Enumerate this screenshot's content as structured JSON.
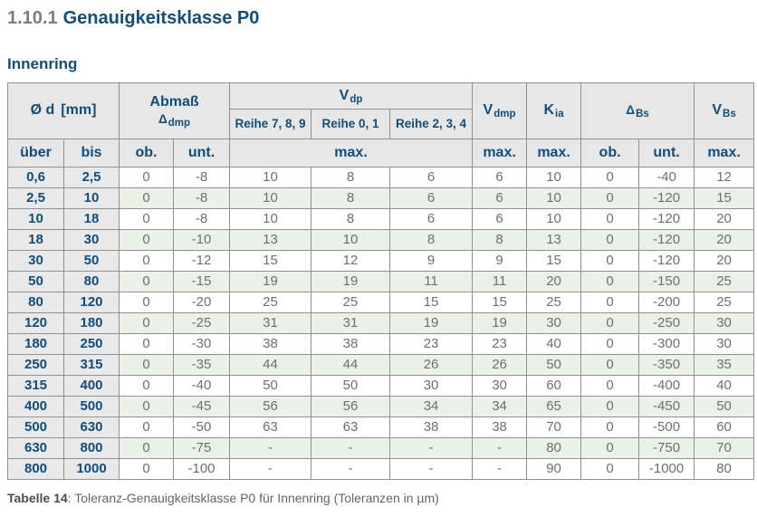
{
  "page": {
    "section_number": "1.10.1",
    "section_title": "Genauigkeitsklasse P0",
    "subsection_title": "Innenring",
    "caption_label": "Tabelle 14",
    "caption_text": ": Toleranz-Genauigkeitsklasse P0 für Innenring (Toleranzen in µm)"
  },
  "colors": {
    "accent_blue": "#0f4e7e",
    "title_number_gray": "#7d7d7d",
    "value_text_gray": "#6f6f6f",
    "header_bg": "#e7e7e7",
    "diameter_col_bg": "#e9e9e9",
    "alt_row_bg": "#eaf2e8",
    "border_gray": "#919191"
  },
  "table": {
    "header": {
      "od": {
        "symbol": "Ø d",
        "unit": "[mm]"
      },
      "abmass": {
        "line1": "Abmaß",
        "base": "Δ",
        "sub": "dmp"
      },
      "vdp": {
        "base": "V",
        "sub": "dp"
      },
      "reihe_cols": [
        "Reihe 7, 8, 9",
        "Reihe 0, 1",
        "Reihe 2, 3, 4"
      ],
      "vdmp": {
        "base": "V",
        "sub": "dmp"
      },
      "kia": {
        "base": "K",
        "sub": "ia"
      },
      "dbs": {
        "base": "Δ",
        "sub": "Bs"
      },
      "vbs": {
        "base": "V",
        "sub": "Bs"
      },
      "sub_labels": {
        "ueber": "über",
        "bis": "bis",
        "ob": "ob.",
        "unt": "unt.",
        "max": "max."
      }
    },
    "rows": [
      [
        "0,6",
        "2,5",
        "0",
        "-8",
        "10",
        "8",
        "6",
        "6",
        "10",
        "0",
        "-40",
        "12"
      ],
      [
        "2,5",
        "10",
        "0",
        "-8",
        "10",
        "8",
        "6",
        "6",
        "10",
        "0",
        "-120",
        "15"
      ],
      [
        "10",
        "18",
        "0",
        "-8",
        "10",
        "8",
        "6",
        "6",
        "10",
        "0",
        "-120",
        "20"
      ],
      [
        "18",
        "30",
        "0",
        "-10",
        "13",
        "10",
        "8",
        "8",
        "13",
        "0",
        "-120",
        "20"
      ],
      [
        "30",
        "50",
        "0",
        "-12",
        "15",
        "12",
        "9",
        "9",
        "15",
        "0",
        "-120",
        "20"
      ],
      [
        "50",
        "80",
        "0",
        "-15",
        "19",
        "19",
        "11",
        "11",
        "20",
        "0",
        "-150",
        "25"
      ],
      [
        "80",
        "120",
        "0",
        "-20",
        "25",
        "25",
        "15",
        "15",
        "25",
        "0",
        "-200",
        "25"
      ],
      [
        "120",
        "180",
        "0",
        "-25",
        "31",
        "31",
        "19",
        "19",
        "30",
        "0",
        "-250",
        "30"
      ],
      [
        "180",
        "250",
        "0",
        "-30",
        "38",
        "38",
        "23",
        "23",
        "40",
        "0",
        "-300",
        "30"
      ],
      [
        "250",
        "315",
        "0",
        "-35",
        "44",
        "44",
        "26",
        "26",
        "50",
        "0",
        "-350",
        "35"
      ],
      [
        "315",
        "400",
        "0",
        "-40",
        "50",
        "50",
        "30",
        "30",
        "60",
        "0",
        "-400",
        "40"
      ],
      [
        "400",
        "500",
        "0",
        "-45",
        "56",
        "56",
        "34",
        "34",
        "65",
        "0",
        "-450",
        "50"
      ],
      [
        "500",
        "630",
        "0",
        "-50",
        "63",
        "63",
        "38",
        "38",
        "70",
        "0",
        "-500",
        "60"
      ],
      [
        "630",
        "800",
        "0",
        "-75",
        "-",
        "-",
        "-",
        "-",
        "80",
        "0",
        "-750",
        "70"
      ],
      [
        "800",
        "1000",
        "0",
        "-100",
        "-",
        "-",
        "-",
        "-",
        "90",
        "0",
        "-1000",
        "80"
      ]
    ]
  }
}
